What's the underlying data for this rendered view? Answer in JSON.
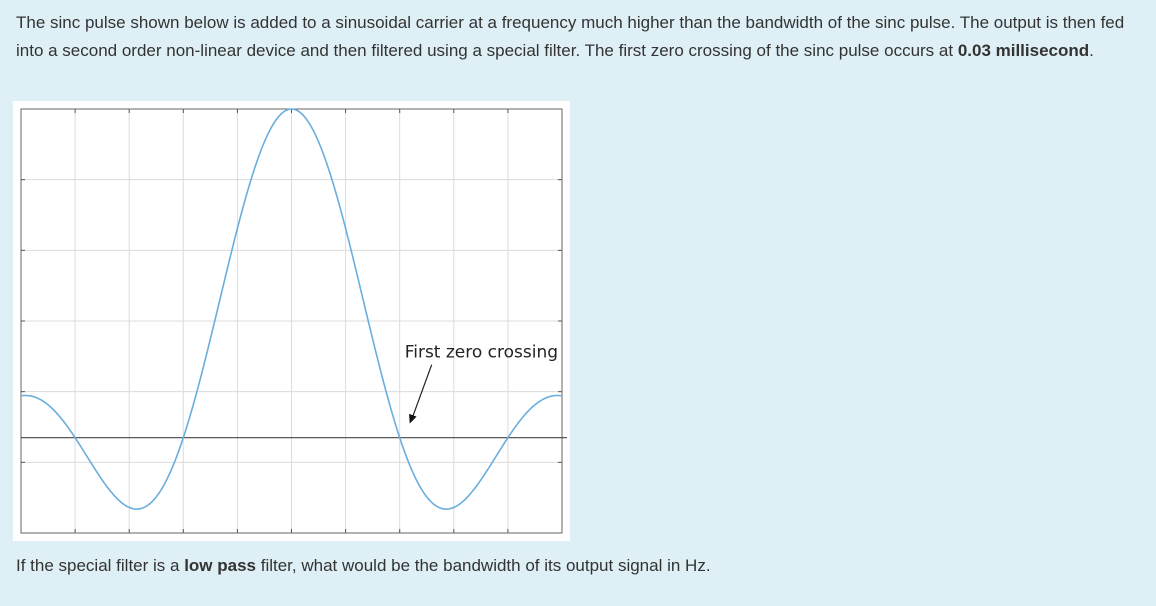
{
  "question": {
    "intro": "The sinc pulse shown below is added to a sinusoidal carrier at a frequency much higher than the bandwidth of the sinc pulse. The output is then fed into a second order non-linear device and then filtered using a special filter. The first zero crossing of the sinc pulse occurs at ",
    "zero_crossing_value": "0.03 millisecond",
    "intro_end": "."
  },
  "followup": {
    "part1": "If the special filter is a ",
    "emphasis": "low pass",
    "part2": " filter, what would be the bandwidth of its output signal in Hz."
  },
  "chart_data": {
    "type": "line",
    "title": "",
    "xlabel": "",
    "ylabel": "",
    "series": [
      {
        "name": "",
        "function": "sinc",
        "amplitude": 1,
        "first_zero_crossing": 1
      }
    ],
    "xlim": [
      -2.5,
      2.5
    ],
    "ylim": [
      -0.29,
      1.0
    ],
    "grid": true,
    "x_gridlines": 10,
    "y_gridlines": 6,
    "baseline_y": 0,
    "line_color": "#6aaede",
    "annotations": [
      {
        "text": "First zero crossing",
        "points_to_x": 1,
        "points_to_y": 0
      }
    ]
  }
}
